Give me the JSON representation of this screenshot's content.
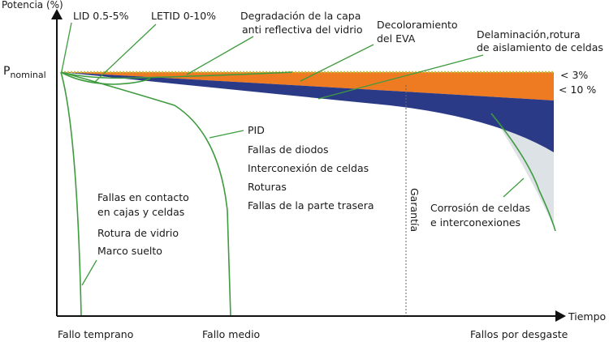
{
  "axes": {
    "y_label": "Potencia (%)",
    "x_label": "Tiempo",
    "p_nominal_main": "P",
    "p_nominal_sub": "nominal"
  },
  "warranty_label": "Garantía",
  "loss_labels": {
    "band1": "< 3%",
    "band2": "< 10  %"
  },
  "annotations": {
    "lid": "LID 0.5-5%",
    "letid": "LETID 0-10%",
    "degradacion_line1": "Degradación de la capa",
    "degradacion_line2": "anti reflectiva del vidrio",
    "decoloramiento_line1": "Decoloramiento",
    "decoloramiento_line2": "del EVA",
    "delaminacion_line1": "Delaminación,rotura",
    "delaminacion_line2": "de aislamiento de celdas"
  },
  "early_failures": [
    "Fallas en contacto",
    "en cajas y celdas",
    "Rotura de vidrio",
    "Marco suelto"
  ],
  "mid_failures": [
    "PID",
    "Fallas de diodos",
    "Interconexión de celdas",
    "Roturas",
    "Fallas de la parte trasera"
  ],
  "wearout_failures": [
    "Corrosión de celdas",
    "e interconexiones"
  ],
  "phases": [
    "Fallo temprano",
    "Fallo medio",
    "Fallos por desgaste"
  ],
  "colors": {
    "orange": "#EE7A22",
    "navy": "#2B3A86",
    "light_gray": "#DDE2E6",
    "green": "#3E9B3E",
    "nominal_dots": "#C2BE3A",
    "axis": "#111111"
  }
}
